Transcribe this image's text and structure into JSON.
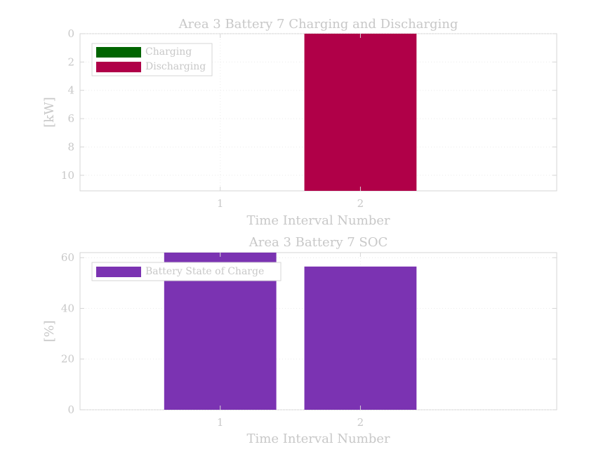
{
  "chart_data": [
    {
      "type": "bar",
      "title": "Area 3 Battery 7 Charging and Discharging",
      "xlabel": "Time Interval Number",
      "ylabel": "[kW]",
      "categories": [
        "1",
        "2"
      ],
      "xlim": [
        0,
        3.4
      ],
      "ylim": [
        0,
        11.1
      ],
      "y_reversed": true,
      "yticks": [
        "0",
        "2",
        "4",
        "6",
        "8",
        "10"
      ],
      "grid": true,
      "legend_position": "top-left",
      "series": [
        {
          "name": "Charging",
          "color": "#006400",
          "values": [
            0,
            0
          ]
        },
        {
          "name": "Discharging",
          "color": "#b00048",
          "values": [
            0,
            11.1
          ]
        }
      ]
    },
    {
      "type": "bar",
      "title": "Area 3 Battery 7 SOC",
      "xlabel": "Time Interval Number",
      "ylabel": "[%]",
      "categories": [
        "1",
        "2"
      ],
      "xlim": [
        0,
        3.4
      ],
      "ylim": [
        0,
        62
      ],
      "yticks": [
        "0",
        "20",
        "40",
        "60"
      ],
      "grid": true,
      "legend_position": "top-left",
      "series": [
        {
          "name": "Battery State of Charge",
          "color": "#7b33b2",
          "values": [
            62,
            56.5
          ]
        }
      ]
    }
  ]
}
